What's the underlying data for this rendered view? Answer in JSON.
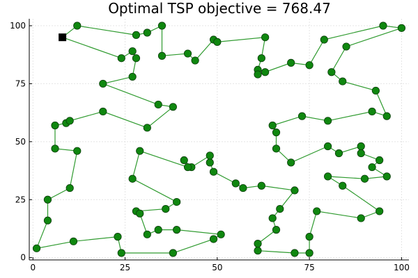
{
  "chart_data": {
    "type": "scatter",
    "title": "Optimal TSP objective = 768.47",
    "xlabel": "",
    "ylabel": "",
    "xlim": [
      -1,
      102
    ],
    "ylim": [
      -1,
      103
    ],
    "xticks": [
      0,
      25,
      50,
      75,
      100
    ],
    "yticks": [
      0,
      25,
      50,
      75,
      100
    ],
    "x_tick_labels": [
      "0",
      "25",
      "50",
      "75",
      "100"
    ],
    "y_tick_labels": [
      "0",
      "25",
      "50",
      "75",
      "100"
    ],
    "grid": true,
    "legend": "none",
    "colors": {
      "route": "#2e9a2e",
      "city": "#0f870f",
      "depot": "#000000",
      "grid": "#e4e4e4"
    },
    "depot": {
      "x": 8,
      "y": 95
    },
    "route": [
      [
        8,
        95
      ],
      [
        12,
        100
      ],
      [
        28,
        96
      ],
      [
        31,
        97
      ],
      [
        35,
        100
      ],
      [
        35,
        87
      ],
      [
        42,
        88
      ],
      [
        44,
        85
      ],
      [
        49,
        94
      ],
      [
        50,
        93
      ],
      [
        63,
        95
      ],
      [
        62,
        86
      ],
      [
        61,
        81
      ],
      [
        61,
        79
      ],
      [
        63,
        80
      ],
      [
        70,
        84
      ],
      [
        75,
        83
      ],
      [
        79,
        94
      ],
      [
        95,
        100
      ],
      [
        100,
        99
      ],
      [
        85,
        91
      ],
      [
        81,
        80
      ],
      [
        84,
        76
      ],
      [
        93,
        72
      ],
      [
        96,
        61
      ],
      [
        92,
        63
      ],
      [
        80,
        59
      ],
      [
        73,
        61
      ],
      [
        65,
        57
      ],
      [
        66,
        54
      ],
      [
        66,
        47
      ],
      [
        70,
        41
      ],
      [
        80,
        48
      ],
      [
        83,
        45
      ],
      [
        89,
        48
      ],
      [
        89,
        45
      ],
      [
        94,
        42
      ],
      [
        92,
        39
      ],
      [
        96,
        35
      ],
      [
        90,
        34
      ],
      [
        80,
        35
      ],
      [
        84,
        31
      ],
      [
        94,
        20
      ],
      [
        89,
        17
      ],
      [
        77,
        20
      ],
      [
        75,
        9
      ],
      [
        75,
        2
      ],
      [
        71,
        2
      ],
      [
        61,
        3
      ],
      [
        61,
        6
      ],
      [
        66,
        12
      ],
      [
        65,
        17
      ],
      [
        67,
        21
      ],
      [
        71,
        29
      ],
      [
        62,
        31
      ],
      [
        57,
        30
      ],
      [
        55,
        32
      ],
      [
        49,
        37
      ],
      [
        48,
        41
      ],
      [
        48,
        44
      ],
      [
        43,
        39
      ],
      [
        41,
        42
      ],
      [
        42,
        39
      ],
      [
        29,
        46
      ],
      [
        27,
        34
      ],
      [
        39,
        24
      ],
      [
        36,
        21
      ],
      [
        28,
        20
      ],
      [
        29,
        19
      ],
      [
        31,
        10
      ],
      [
        34,
        12
      ],
      [
        39,
        12
      ],
      [
        51,
        10
      ],
      [
        49,
        8
      ],
      [
        38,
        2
      ],
      [
        24,
        2
      ],
      [
        23,
        9
      ],
      [
        11,
        7
      ],
      [
        1,
        4
      ],
      [
        4,
        16
      ],
      [
        4,
        25
      ],
      [
        10,
        30
      ],
      [
        12,
        46
      ],
      [
        6,
        47
      ],
      [
        6,
        57
      ],
      [
        9,
        58
      ],
      [
        10,
        59
      ],
      [
        19,
        63
      ],
      [
        31,
        56
      ],
      [
        38,
        65
      ],
      [
        34,
        66
      ],
      [
        19,
        75
      ],
      [
        27,
        78
      ],
      [
        28,
        86
      ],
      [
        27,
        89
      ],
      [
        24,
        86
      ],
      [
        8,
        95
      ]
    ]
  }
}
